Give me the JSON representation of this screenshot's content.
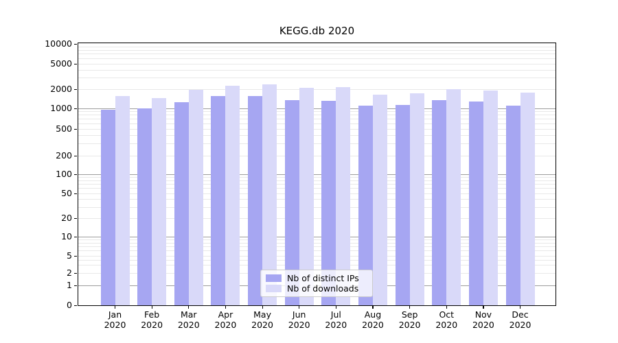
{
  "title": "KEGG.db 2020",
  "chart_data": {
    "type": "bar",
    "title": "KEGG.db 2020",
    "categories": [
      "Jan",
      "Feb",
      "Mar",
      "Apr",
      "May",
      "Jun",
      "Jul",
      "Aug",
      "Sep",
      "Oct",
      "Nov",
      "Dec"
    ],
    "category_year": "2020",
    "series": [
      {
        "name": "Nb of distinct IPs",
        "color": "#a6a6f2",
        "values": [
          950,
          1000,
          1250,
          1550,
          1550,
          1340,
          1310,
          1100,
          1130,
          1350,
          1280,
          1100
        ]
      },
      {
        "name": "Nb of downloads",
        "color": "#d9d9f9",
        "values": [
          1560,
          1440,
          1940,
          2250,
          2400,
          2080,
          2140,
          1650,
          1740,
          1990,
          1890,
          1760
        ]
      }
    ],
    "xlabel": "",
    "ylabel": "",
    "yscale": "symlog",
    "ylim": [
      0,
      10000
    ],
    "y_ticks": [
      10000,
      5000,
      2000,
      1000,
      500,
      200,
      100,
      50,
      20,
      10,
      5,
      2,
      1,
      0
    ],
    "grid": "horizontal major (dark) and log-minor (light) gridlines",
    "legend_position": "inside bottom-center"
  },
  "legend": {
    "items": [
      {
        "label": "Nb of distinct IPs"
      },
      {
        "label": "Nb of downloads"
      }
    ]
  }
}
